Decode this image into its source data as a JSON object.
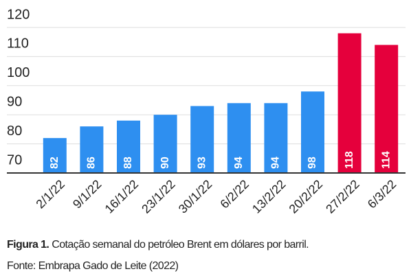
{
  "chart_data": {
    "type": "bar",
    "categories": [
      "2/1/22",
      "9/1/22",
      "16/1/22",
      "23/1/22",
      "30/1/22",
      "6/2/22",
      "13/2/22",
      "20/2/22",
      "27/2/22",
      "6/3/22"
    ],
    "values": [
      82,
      86,
      88,
      90,
      93,
      94,
      94,
      98,
      118,
      114
    ],
    "colors": [
      "#2e8ff0",
      "#2e8ff0",
      "#2e8ff0",
      "#2e8ff0",
      "#2e8ff0",
      "#2e8ff0",
      "#2e8ff0",
      "#2e8ff0",
      "#e5003c",
      "#e5003c"
    ],
    "ylim": [
      70,
      120
    ],
    "yticks": [
      70,
      80,
      90,
      100,
      110,
      120
    ],
    "grid": true,
    "caption_label": "Figura 1.",
    "caption": "Cotação semanal do petróleo Brent em dólares por barril.",
    "source": "Fonte: Embrapa Gado de Leite (2022)"
  }
}
